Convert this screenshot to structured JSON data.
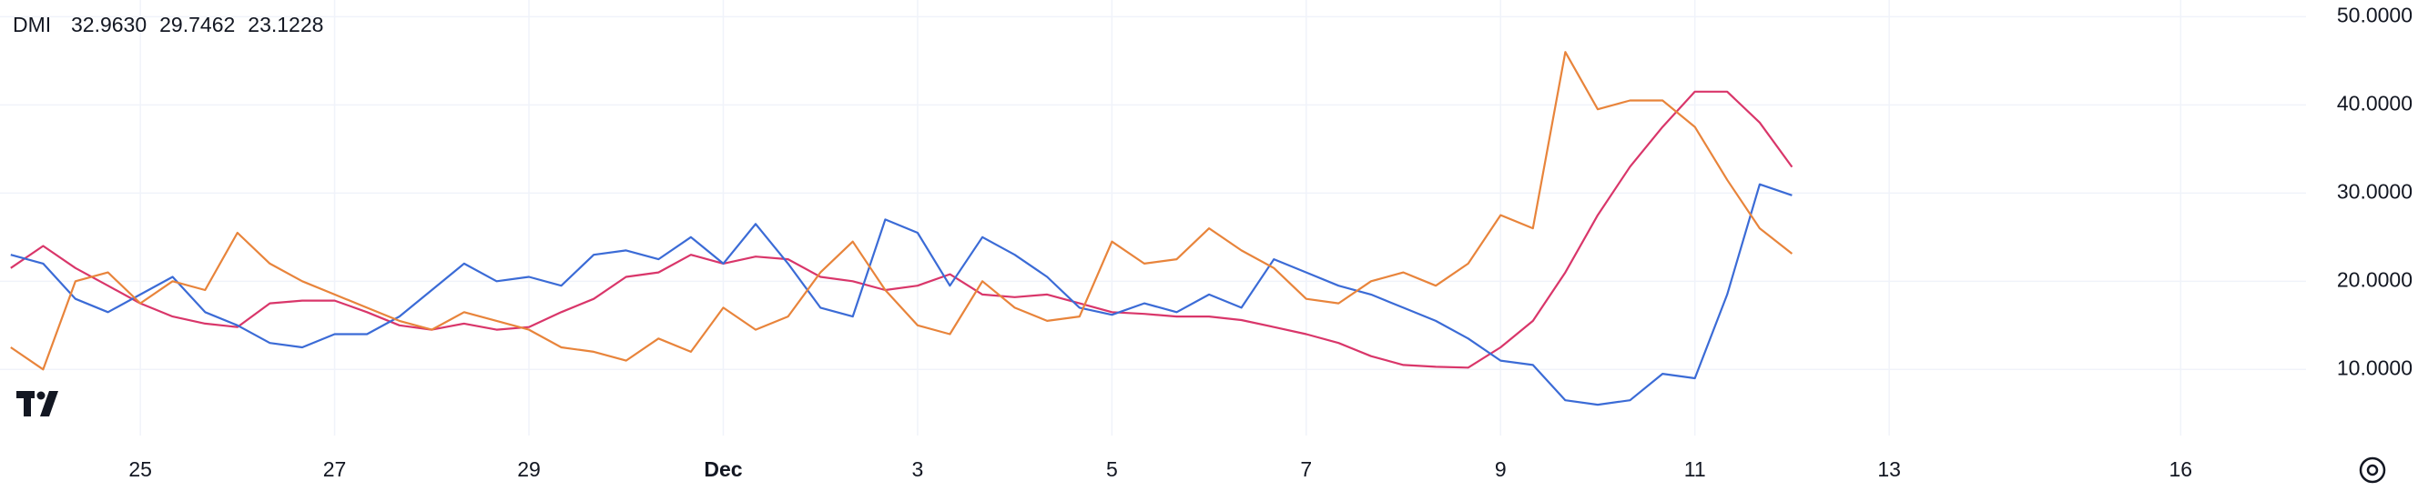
{
  "chart_data": {
    "type": "line",
    "title": "DMI",
    "x": [
      23.667,
      24,
      24.333,
      24.667,
      25,
      25.333,
      25.667,
      26,
      26.333,
      26.667,
      27,
      27.333,
      27.667,
      28,
      28.333,
      28.667,
      29,
      29.333,
      29.667,
      30,
      30.333,
      30.667,
      31,
      31.333,
      31.667,
      32,
      32.333,
      32.667,
      33,
      33.333,
      33.667,
      34,
      34.333,
      34.667,
      35,
      35.333,
      35.667,
      36,
      36.333,
      36.667,
      37,
      37.333,
      37.667,
      38,
      38.333,
      38.667,
      39,
      39.333,
      39.667,
      40,
      40.333,
      40.667,
      41,
      41.333,
      41.667,
      42
    ],
    "series": [
      {
        "name": "32.9630",
        "color": "#d9366a",
        "values": [
          21.5,
          24,
          21.5,
          19.5,
          17.5,
          16,
          15.2,
          14.8,
          17.5,
          17.8,
          17.8,
          16.5,
          15,
          14.5,
          15.2,
          14.5,
          14.8,
          16.5,
          18,
          20.5,
          21,
          23,
          22,
          22.8,
          22.5,
          20.5,
          20,
          19,
          19.5,
          20.8,
          18.5,
          18.2,
          18.5,
          17.5,
          16.5,
          16.3,
          16,
          16,
          15.6,
          14.8,
          14,
          13,
          11.5,
          10.5,
          10.3,
          10.2,
          12.5,
          15.5,
          21,
          27.5,
          33,
          37.5,
          41.5,
          41.5,
          38,
          32.963
        ]
      },
      {
        "name": "29.7462",
        "color": "#3b6bd6",
        "values": [
          23,
          22,
          18,
          16.5,
          18.5,
          20.5,
          16.5,
          15,
          13,
          12.5,
          14,
          14,
          16,
          19,
          22,
          20,
          20.5,
          19.5,
          23,
          23.5,
          22.5,
          25,
          22,
          26.5,
          22,
          17,
          16,
          27,
          25.5,
          19.5,
          25,
          23,
          20.5,
          17,
          16.2,
          17.5,
          16.5,
          18.5,
          17,
          22.5,
          21,
          19.5,
          18.5,
          17,
          15.5,
          13.5,
          11,
          10.5,
          6.5,
          6,
          6.5,
          9.5,
          9,
          18.5,
          31,
          29.7462
        ]
      },
      {
        "name": "23.1228",
        "color": "#e8843b",
        "values": [
          12.5,
          10,
          20,
          21,
          17.5,
          20,
          19,
          25.5,
          22,
          20,
          18.5,
          17,
          15.5,
          14.5,
          16.5,
          15.5,
          14.5,
          12.5,
          12,
          11,
          13.5,
          12,
          17,
          14.5,
          16,
          21,
          24.5,
          19,
          15,
          14,
          20,
          17,
          15.5,
          16,
          24.5,
          22,
          22.5,
          26,
          23.5,
          21.5,
          18,
          17.5,
          20,
          21,
          19.5,
          22,
          27.5,
          26,
          46,
          39.5,
          40.5,
          40.5,
          37.5,
          31.5,
          26,
          23.1228
        ]
      }
    ],
    "xlim": [
      23.556,
      47.29
    ],
    "xticks": [
      25,
      27,
      29,
      {
        "value": 31,
        "label": "Dec"
      },
      {
        "value": 33,
        "label": "3"
      },
      {
        "value": 35,
        "label": "5"
      },
      {
        "value": 37,
        "label": "7"
      },
      {
        "value": 39,
        "label": "9"
      },
      {
        "value": 41,
        "label": "11"
      },
      {
        "value": 43,
        "label": "13"
      },
      {
        "value": 46,
        "label": "16"
      }
    ],
    "ylim": [
      2.5,
      51.9
    ],
    "yticks": [
      {
        "value": 10,
        "label": "10.0000"
      },
      {
        "value": 20,
        "label": "20.0000"
      },
      {
        "value": 30,
        "label": "30.0000"
      },
      {
        "value": 40,
        "label": "40.0000"
      },
      {
        "value": 50,
        "label": "50.0000"
      }
    ],
    "grid": true
  }
}
